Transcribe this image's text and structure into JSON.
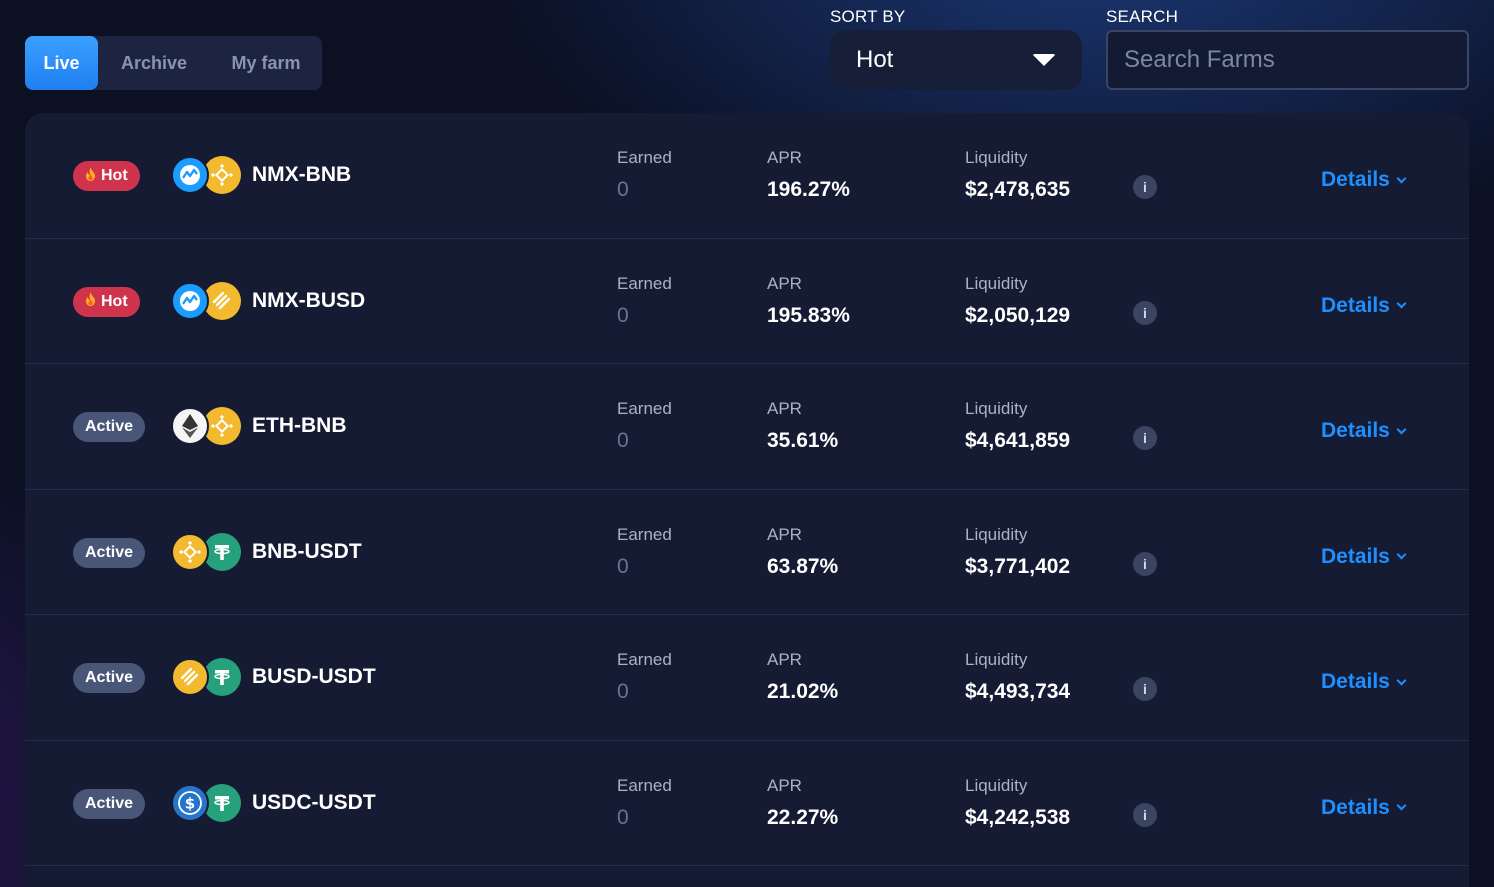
{
  "tabs": [
    {
      "label": "Live",
      "active": true
    },
    {
      "label": "Archive",
      "active": false
    },
    {
      "label": "My farm",
      "active": false
    }
  ],
  "sort": {
    "label": "SORT BY",
    "value": "Hot"
  },
  "search": {
    "label": "SEARCH",
    "placeholder": "Search Farms"
  },
  "columns": {
    "earned": "Earned",
    "apr": "APR",
    "liquidity": "Liquidity",
    "details": "Details"
  },
  "farms": [
    {
      "badge": "Hot",
      "badge_type": "hot",
      "pair": "NMX-BNB",
      "token_a": "nmx",
      "token_b": "bnb",
      "earned": "0",
      "apr": "196.27%",
      "liquidity": "$2,478,635"
    },
    {
      "badge": "Hot",
      "badge_type": "hot",
      "pair": "NMX-BUSD",
      "token_a": "nmx",
      "token_b": "busd",
      "earned": "0",
      "apr": "195.83%",
      "liquidity": "$2,050,129"
    },
    {
      "badge": "Active",
      "badge_type": "active",
      "pair": "ETH-BNB",
      "token_a": "eth",
      "token_b": "bnb",
      "earned": "0",
      "apr": "35.61%",
      "liquidity": "$4,641,859"
    },
    {
      "badge": "Active",
      "badge_type": "active",
      "pair": "BNB-USDT",
      "token_a": "bnb",
      "token_b": "usdt",
      "earned": "0",
      "apr": "63.87%",
      "liquidity": "$3,771,402"
    },
    {
      "badge": "Active",
      "badge_type": "active",
      "pair": "BUSD-USDT",
      "token_a": "busd",
      "token_b": "usdt",
      "earned": "0",
      "apr": "21.02%",
      "liquidity": "$4,493,734"
    },
    {
      "badge": "Active",
      "badge_type": "active",
      "pair": "USDC-USDT",
      "token_a": "usdc",
      "token_b": "usdt",
      "earned": "0",
      "apr": "22.27%",
      "liquidity": "$4,242,538"
    }
  ],
  "colors": {
    "accent": "#1f8fff",
    "hot": "#d0334c",
    "active": "#4a5677",
    "background": "#0b1023",
    "card": "#141b33"
  }
}
